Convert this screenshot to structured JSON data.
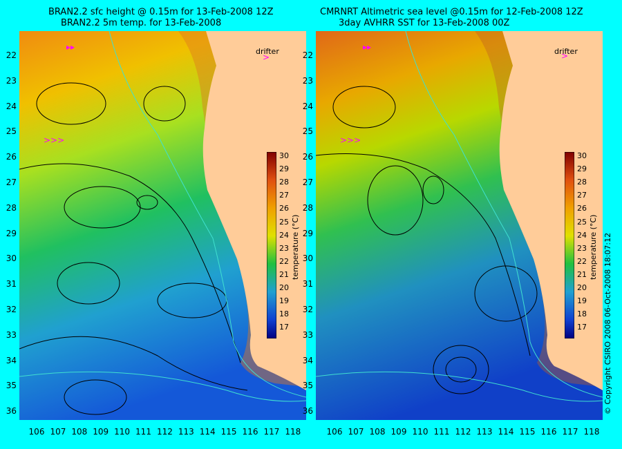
{
  "left_panel": {
    "title_line1": "BRAN2.2 sfc height @ 0.15m for 13-Feb-2008 12Z",
    "title_line2": "BRAN2.2 5m temp. for 13-Feb-2008"
  },
  "right_panel": {
    "title_line1": "CMRNRT Altimetric sea level  @0.15m  for 12-Feb-2008 12Z",
    "title_line2": "3day AVHRR SST for 13-Feb-2008 00Z"
  },
  "drifter_label": "drifter",
  "y_ticks": [
    "22",
    "23",
    "24",
    "25",
    "26",
    "27",
    "28",
    "29",
    "30",
    "31",
    "32",
    "33",
    "34",
    "35",
    "36"
  ],
  "x_ticks": [
    "106",
    "107",
    "108",
    "109",
    "110",
    "111",
    "112",
    "113",
    "114",
    "115",
    "116",
    "117",
    "118"
  ],
  "colorbar": {
    "ticks": [
      "30",
      "29",
      "28",
      "27",
      "26",
      "25",
      "24",
      "23",
      "22",
      "21",
      "20",
      "19",
      "18",
      "17"
    ],
    "label": "temperature (°C)"
  },
  "copyright": "© Copyright CSIRO 2008   06-Oct-2008 18:07:12",
  "colors": {
    "background": "#00ffff",
    "land": "#ffcc99",
    "cold": "#1a4fd6",
    "warm": "#e06010",
    "drifter": "#ff00ff"
  }
}
